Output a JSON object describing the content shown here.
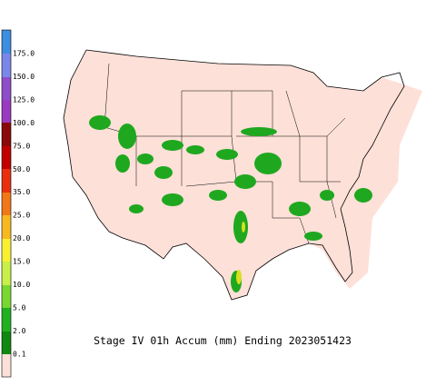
{
  "title": "Stage IV 01h Accum (mm) Ending 2023051423",
  "legend": {
    "labels": [
      "175.0",
      "150.0",
      "125.0",
      "100.0",
      "75.0",
      "50.0",
      "35.0",
      "25.0",
      "20.0",
      "15.0",
      "10.0",
      "5.0",
      "2.0",
      "0.1"
    ]
  }
}
